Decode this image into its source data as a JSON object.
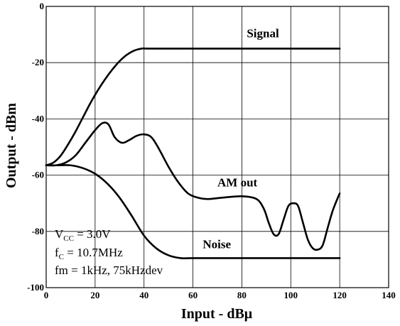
{
  "chart_data": {
    "type": "line",
    "xlabel": "Input - dBμ",
    "ylabel": "Output - dBm",
    "xlim": [
      0,
      140
    ],
    "ylim": [
      -100,
      0
    ],
    "x_ticks": [
      0,
      20,
      40,
      60,
      80,
      100,
      120,
      140
    ],
    "y_ticks": [
      0,
      -20,
      -40,
      -60,
      -80,
      -100
    ],
    "grid": true,
    "series": [
      {
        "name": "Signal",
        "x": [
          0,
          3,
          6,
          9,
          12,
          15,
          18,
          21,
          24,
          27,
          30,
          33,
          36,
          39,
          42,
          60,
          80,
          100,
          120
        ],
        "y": [
          -56.5,
          -55.5,
          -53,
          -49,
          -44.5,
          -39.5,
          -34.5,
          -30,
          -26,
          -22.5,
          -19.5,
          -17.2,
          -15.7,
          -15,
          -15,
          -15,
          -15,
          -15,
          -15
        ]
      },
      {
        "name": "AM out",
        "x": [
          0,
          4,
          8,
          12,
          16,
          20,
          23,
          25.5,
          28,
          31,
          34,
          37,
          40,
          43,
          46,
          50,
          54,
          58,
          62,
          66,
          72,
          80,
          86,
          89,
          91,
          93,
          95,
          97,
          99,
          101,
          103,
          105,
          107,
          109,
          111,
          113,
          115,
          117,
          119,
          120
        ],
        "y": [
          -56.5,
          -56.5,
          -55.5,
          -53,
          -48.5,
          -44,
          -41.5,
          -42,
          -46.5,
          -48.5,
          -47.5,
          -46,
          -45.5,
          -46.5,
          -50.5,
          -57,
          -62.5,
          -66.5,
          -68,
          -68.5,
          -68,
          -67.5,
          -68.5,
          -72,
          -77,
          -81,
          -81,
          -76,
          -71,
          -70,
          -71,
          -77,
          -83,
          -86,
          -86.5,
          -85,
          -79,
          -73,
          -68.5,
          -66.5
        ]
      },
      {
        "name": "Noise",
        "x": [
          0,
          5,
          10,
          15,
          20,
          25,
          30,
          35,
          40,
          45,
          50,
          55,
          60,
          70,
          80,
          90,
          100,
          110,
          120
        ],
        "y": [
          -56.5,
          -56.5,
          -56.5,
          -57.5,
          -59.5,
          -63,
          -68,
          -74.5,
          -81.5,
          -86,
          -88.5,
          -89.5,
          -89.5,
          -89.5,
          -89.5,
          -89.5,
          -89.5,
          -89.5,
          -89.5
        ]
      }
    ],
    "series_labels": [
      {
        "text": "Signal",
        "x": 82,
        "y": -11
      },
      {
        "text": "AM out",
        "x": 70,
        "y": -64
      },
      {
        "text": "Noise",
        "x": 64,
        "y": -86
      }
    ],
    "annotation": {
      "lines": [
        {
          "main": "V",
          "sub": "CC",
          "rest": " = 3.0V"
        },
        {
          "main": "f",
          "sub": "C",
          "rest": " = 10.7MHz"
        },
        {
          "main": "fm = 1kHz, 75kHzdev",
          "sub": "",
          "rest": ""
        }
      ]
    }
  }
}
